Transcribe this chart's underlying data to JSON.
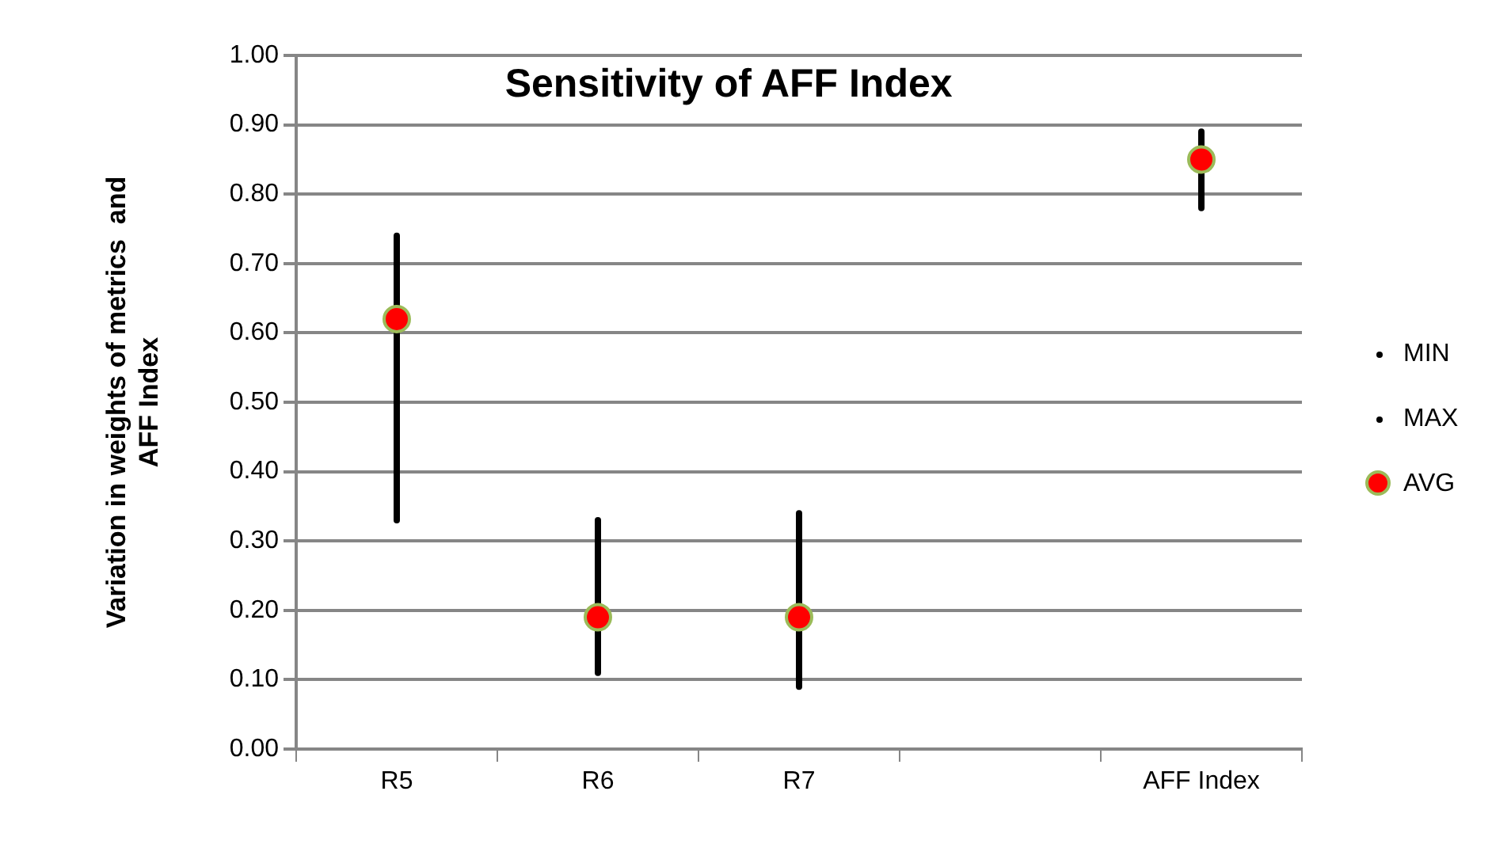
{
  "chart_data": {
    "type": "scatter",
    "title": "Sensitivity of AFF Index",
    "ylabel": "Variation in weights of metrics  and AFF Index",
    "categories": [
      "R5",
      "R6",
      "R7",
      null,
      "AFF Index"
    ],
    "series": [
      {
        "name": "MIN",
        "color": "#000000",
        "values": [
          0.33,
          0.11,
          0.09,
          null,
          0.78
        ]
      },
      {
        "name": "MAX",
        "color": "#000000",
        "values": [
          0.74,
          0.33,
          0.34,
          null,
          0.89
        ]
      },
      {
        "name": "AVG",
        "color": "#ff0000",
        "marker": "circle",
        "values": [
          0.62,
          0.19,
          0.19,
          null,
          0.85
        ]
      }
    ],
    "ylim": [
      0,
      1
    ],
    "yticks": [
      {
        "value": 0,
        "label": "0.00"
      },
      {
        "value": 0.1,
        "label": "0.10"
      },
      {
        "value": 0.2,
        "label": "0.20"
      },
      {
        "value": 0.3,
        "label": "0.30"
      },
      {
        "value": 0.4,
        "label": "0.40"
      },
      {
        "value": 0.5,
        "label": "0.50"
      },
      {
        "value": 0.6,
        "label": "0.60"
      },
      {
        "value": 0.7,
        "label": "0.70"
      },
      {
        "value": 0.8,
        "label": "0.80"
      },
      {
        "value": 0.9,
        "label": "0.90"
      },
      {
        "value": 1,
        "label": "1.00"
      }
    ],
    "grid": "y",
    "legend": "right"
  }
}
